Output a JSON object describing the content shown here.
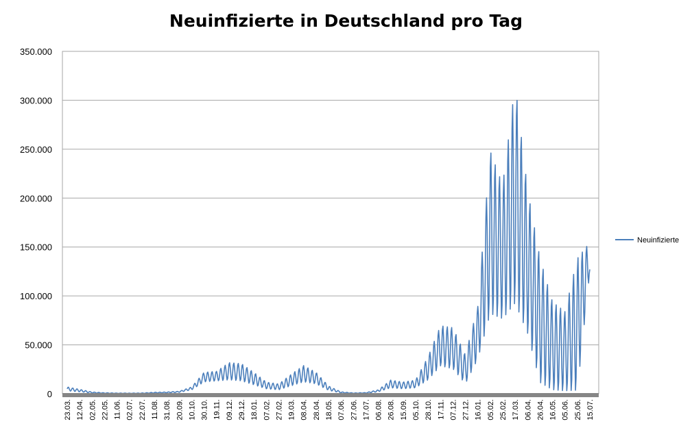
{
  "chart_data": {
    "type": "line",
    "title": "Neuinfizierte in Deutschland pro Tag",
    "xlabel": "",
    "ylabel": "",
    "ylim": [
      0,
      350000
    ],
    "grid": true,
    "legend_position": "right",
    "y_ticks": [
      0,
      50000,
      100000,
      150000,
      200000,
      250000,
      300000,
      350000
    ],
    "y_tick_labels": [
      "0",
      "50.000",
      "100.000",
      "150.000",
      "200.000",
      "250.000",
      "300.000",
      "350.000"
    ],
    "x_tick_labels": [
      "23.03.",
      "12.04.",
      "02.05.",
      "22.05.",
      "11.06.",
      "02.07.",
      "22.07.",
      "11.08.",
      "31.08.",
      "20.09.",
      "10.10.",
      "30.10.",
      "19.11.",
      "09.12.",
      "29.12.",
      "18.01.",
      "07.02.",
      "27.02.",
      "19.03.",
      "08.04.",
      "28.04.",
      "18.05.",
      "07.06.",
      "27.06.",
      "17.07.",
      "06.08.",
      "26.08.",
      "15.09.",
      "05.10.",
      "28.10.",
      "17.11.",
      "07.12.",
      "27.12.",
      "16.01.",
      "05.02.",
      "25.02.",
      "17.03.",
      "06.04.",
      "26.04.",
      "16.05.",
      "05.06.",
      "25.06.",
      "15.07."
    ],
    "series": [
      {
        "name": "Neuinfizierte",
        "color": "#4a7ebb",
        "envelope_x": [
          "23.03.",
          "12.04.",
          "02.05.",
          "22.05.",
          "11.06.",
          "02.07.",
          "22.07.",
          "11.08.",
          "31.08.",
          "20.09.",
          "10.10.",
          "30.10.",
          "19.11.",
          "09.12.",
          "29.12.",
          "18.01.",
          "07.02.",
          "27.02.",
          "19.03.",
          "08.04.",
          "28.04.",
          "18.05.",
          "07.06.",
          "27.06.",
          "17.07.",
          "06.08.",
          "26.08.",
          "15.09.",
          "05.10.",
          "28.10.",
          "17.11.",
          "07.12.",
          "27.12.",
          "16.01.",
          "05.02.",
          "25.02.",
          "17.03.",
          "06.04.",
          "26.04.",
          "16.05.",
          "05.06.",
          "25.06.",
          "15.07."
        ],
        "weekly_max": [
          7000,
          4500,
          1800,
          1000,
          700,
          600,
          800,
          1500,
          1800,
          2500,
          7000,
          22000,
          23000,
          32000,
          31000,
          22000,
          12000,
          10000,
          20000,
          29000,
          22000,
          8000,
          2000,
          800,
          1200,
          4000,
          14000,
          12000,
          14000,
          38000,
          70000,
          68000,
          40000,
          90000,
          250000,
          215000,
          319000,
          210000,
          140000,
          95000,
          85000,
          140000,
          155000
        ],
        "weekly_min": [
          3000,
          2000,
          800,
          400,
          300,
          300,
          300,
          700,
          1000,
          1500,
          4000,
          12000,
          13000,
          14000,
          13000,
          9000,
          5000,
          4000,
          8000,
          12000,
          10000,
          3500,
          900,
          400,
          600,
          2000,
          6000,
          5000,
          6000,
          14000,
          28000,
          25000,
          10000,
          35000,
          80000,
          75000,
          90000,
          60000,
          10000,
          3000,
          2000,
          2000,
          125000
        ]
      }
    ]
  }
}
